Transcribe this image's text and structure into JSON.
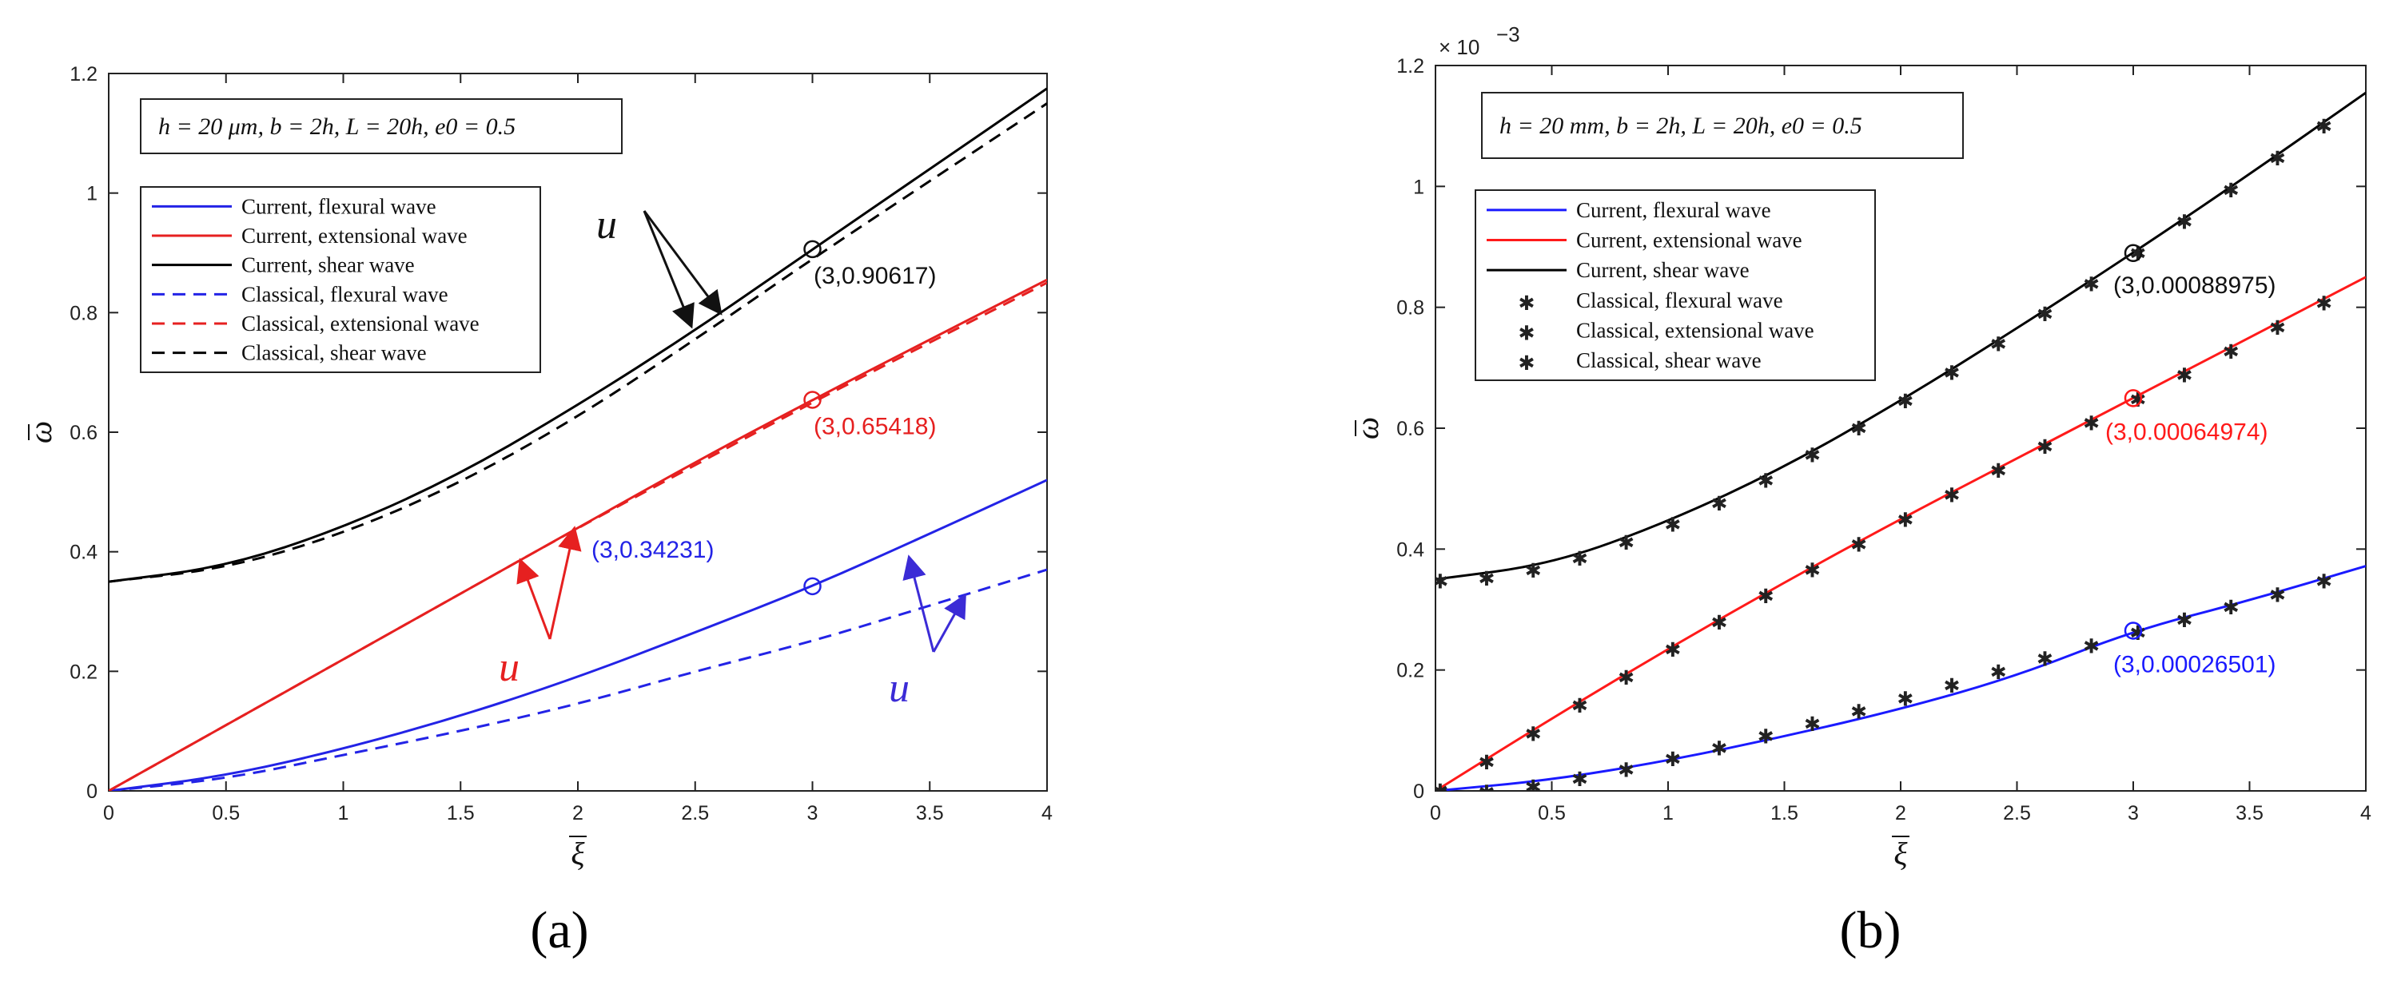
{
  "chart_data": [
    {
      "panel": "(a)",
      "type": "line",
      "xlabel": "ξ",
      "ylabel": "ω",
      "xlim": [
        0,
        4
      ],
      "ylim": [
        0,
        1.2
      ],
      "xticks": [
        "0",
        "0.5",
        "1",
        "1.5",
        "2",
        "2.5",
        "3",
        "3.5",
        "4"
      ],
      "yticks": [
        "0",
        "0.2",
        "0.4",
        "0.6",
        "0.8",
        "1",
        "1.2"
      ],
      "params": "h = 20 μm, b = 2h, L = 20h, e0 = 0.5",
      "legend": [
        {
          "label": "Current, flexural wave",
          "color": "#2323e6",
          "style": "solid"
        },
        {
          "label": "Current, extensional wave",
          "color": "#e62020",
          "style": "solid"
        },
        {
          "label": "Current, shear wave",
          "color": "#000000",
          "style": "solid"
        },
        {
          "label": "Classical, flexural wave",
          "color": "#2323e6",
          "style": "dashed"
        },
        {
          "label": "Classical, extensional wave",
          "color": "#e62020",
          "style": "dashed"
        },
        {
          "label": "Classical, shear wave",
          "color": "#000000",
          "style": "dashed"
        }
      ],
      "series": [
        {
          "name": "Current, flexural wave",
          "x": [
            0,
            0.5,
            1,
            1.5,
            2,
            2.5,
            3,
            3.5,
            4
          ],
          "values": [
            0,
            0.025,
            0.07,
            0.125,
            0.19,
            0.265,
            0.342,
            0.43,
            0.52
          ]
        },
        {
          "name": "Current, extensional wave",
          "x": [
            0,
            0.5,
            1,
            1.5,
            2,
            2.5,
            3,
            3.5,
            4
          ],
          "values": [
            0,
            0.11,
            0.22,
            0.33,
            0.44,
            0.55,
            0.654,
            0.755,
            0.855
          ]
        },
        {
          "name": "Current, shear wave",
          "x": [
            0,
            0.5,
            1,
            1.5,
            2,
            2.5,
            3,
            3.5,
            4
          ],
          "values": [
            0.35,
            0.375,
            0.44,
            0.53,
            0.645,
            0.77,
            0.906,
            1.04,
            1.175
          ]
        },
        {
          "name": "Classical, flexural wave",
          "x": [
            0,
            0.5,
            1,
            1.5,
            2,
            2.5,
            3,
            3.5,
            4
          ],
          "values": [
            0,
            0.02,
            0.06,
            0.1,
            0.145,
            0.2,
            0.25,
            0.31,
            0.37
          ]
        },
        {
          "name": "Classical, extensional wave",
          "x": [
            0,
            0.5,
            1,
            1.5,
            2,
            2.5,
            3,
            3.5,
            4
          ],
          "values": [
            0,
            0.11,
            0.22,
            0.33,
            0.44,
            0.545,
            0.65,
            0.75,
            0.85
          ]
        },
        {
          "name": "Classical, shear wave",
          "x": [
            0,
            0.5,
            1,
            1.5,
            2,
            2.5,
            3,
            3.5,
            4
          ],
          "values": [
            0.35,
            0.372,
            0.43,
            0.515,
            0.625,
            0.755,
            0.89,
            1.02,
            1.15
          ]
        }
      ],
      "markers": [
        {
          "x": 3,
          "y": 0.90617,
          "label": "(3,0.90617)",
          "color": "#111111"
        },
        {
          "x": 3,
          "y": 0.65418,
          "label": "(3,0.65418)",
          "color": "#e62020"
        },
        {
          "x": 3,
          "y": 0.34231,
          "label": "(3,0.34231)",
          "color": "#2323e6"
        }
      ],
      "u_label": "u"
    },
    {
      "panel": "(b)",
      "type": "line",
      "xlabel": "ξ",
      "ylabel": "ω",
      "axis_multiplier": "× 10",
      "axis_exponent": "−3",
      "xlim": [
        0,
        4
      ],
      "ylim": [
        0,
        1.2
      ],
      "xticks": [
        "0",
        "0.5",
        "1",
        "1.5",
        "2",
        "2.5",
        "3",
        "3.5",
        "4"
      ],
      "yticks": [
        "0",
        "0.2",
        "0.4",
        "0.6",
        "0.8",
        "1",
        "1.2"
      ],
      "params": "h = 20 mm, b = 2h, L = 20h, e0 = 0.5",
      "legend": [
        {
          "label": "Current, flexural wave",
          "color": "#1a1aff",
          "style": "solid"
        },
        {
          "label": "Current, extensional wave",
          "color": "#ff1a1a",
          "style": "solid"
        },
        {
          "label": "Current, shear wave",
          "color": "#000000",
          "style": "solid"
        },
        {
          "label": "Classical, flexural wave",
          "color": "#1a1aff",
          "style": "star"
        },
        {
          "label": "Classical, extensional wave",
          "color": "#ff1a1a",
          "style": "star"
        },
        {
          "label": "Classical, shear wave",
          "color": "#000000",
          "style": "star"
        }
      ],
      "series": [
        {
          "name": "Current, flexural wave",
          "x": [
            0,
            0.5,
            1,
            1.5,
            2,
            2.5,
            3,
            3.5,
            4
          ],
          "values": [
            0,
            0.018,
            0.05,
            0.09,
            0.135,
            0.19,
            0.265,
            0.315,
            0.372
          ]
        },
        {
          "name": "Current, extensional wave",
          "x": [
            0,
            0.5,
            1,
            1.5,
            2,
            2.5,
            3,
            3.5,
            4
          ],
          "values": [
            0,
            0.12,
            0.235,
            0.345,
            0.45,
            0.55,
            0.65,
            0.75,
            0.85
          ]
        },
        {
          "name": "Current, shear wave",
          "x": [
            0,
            0.5,
            1,
            1.5,
            2,
            2.5,
            3,
            3.5,
            4
          ],
          "values": [
            0.35,
            0.375,
            0.445,
            0.535,
            0.645,
            0.765,
            0.89,
            1.02,
            1.155
          ]
        },
        {
          "name": "Classical, flexural wave",
          "x": [
            0.02,
            0.22,
            0.42,
            0.62,
            0.82,
            1.02,
            1.22,
            1.42,
            1.62,
            1.82,
            2.02,
            2.22,
            2.42,
            2.62,
            2.82,
            3.02,
            3.22,
            3.42,
            3.62,
            3.82
          ],
          "values": [
            0,
            0.003,
            0.012,
            0.025,
            0.04,
            0.058,
            0.076,
            0.096,
            0.116,
            0.137,
            0.158,
            0.18,
            0.202,
            0.224,
            0.245,
            0.267,
            0.288,
            0.309,
            0.33,
            0.352
          ]
        },
        {
          "name": "Classical, extensional wave",
          "x": [
            0.02,
            0.22,
            0.42,
            0.62,
            0.82,
            1.02,
            1.22,
            1.42,
            1.62,
            1.82,
            2.02,
            2.22,
            2.42,
            2.62,
            2.82,
            3.02,
            3.22,
            3.42,
            3.62,
            3.82
          ],
          "values": [
            0.005,
            0.053,
            0.1,
            0.147,
            0.193,
            0.239,
            0.284,
            0.328,
            0.371,
            0.413,
            0.454,
            0.495,
            0.535,
            0.575,
            0.614,
            0.653,
            0.693,
            0.732,
            0.772,
            0.812
          ]
        },
        {
          "name": "Classical, shear wave",
          "x": [
            0.02,
            0.22,
            0.42,
            0.62,
            0.82,
            1.02,
            1.22,
            1.42,
            1.62,
            1.82,
            2.02,
            2.22,
            2.42,
            2.62,
            2.82,
            3.02,
            3.22,
            3.42,
            3.62,
            3.82
          ],
          "values": [
            0.352,
            0.357,
            0.37,
            0.39,
            0.416,
            0.446,
            0.481,
            0.519,
            0.561,
            0.605,
            0.65,
            0.697,
            0.745,
            0.794,
            0.844,
            0.895,
            0.947,
            0.999,
            1.052,
            1.105
          ]
        }
      ],
      "markers": [
        {
          "x": 3,
          "y": 0.88975,
          "label": "(3,0.00088975)",
          "color": "#111111"
        },
        {
          "x": 3,
          "y": 0.64974,
          "label": "(3,0.00064974)",
          "color": "#ff1a1a"
        },
        {
          "x": 3,
          "y": 0.26501,
          "label": "(3,0.00026501)",
          "color": "#1a1aff"
        }
      ]
    }
  ]
}
